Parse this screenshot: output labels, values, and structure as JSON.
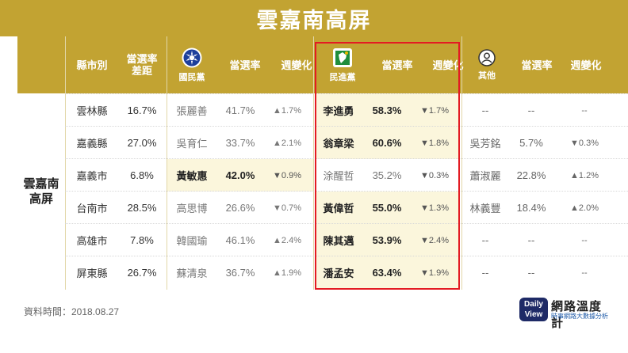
{
  "title": "雲嘉南高屏",
  "headers": {
    "county": "縣市別",
    "gap": "當選率\n差距",
    "kmt_party": "國民黨",
    "kmt_rate": "當選率",
    "kmt_change": "週變化",
    "dpp_party": "民進黨",
    "dpp_rate": "當選率",
    "dpp_change": "週變化",
    "other_party": "其他",
    "other_rate": "當選率",
    "other_change": "週變化"
  },
  "region_label": "雲嘉南\n高屏",
  "rows": [
    {
      "county": "雲林縣",
      "gap": "16.7%",
      "kmt_name": "張麗善",
      "kmt_rate": "41.7%",
      "kmt_change": "▲1.7%",
      "dpp_name": "李進勇",
      "dpp_rate": "58.3%",
      "dpp_change": "▼1.7%",
      "other_name": "--",
      "other_rate": "--",
      "other_change": "--"
    },
    {
      "county": "嘉義縣",
      "gap": "27.0%",
      "kmt_name": "吳育仁",
      "kmt_rate": "33.7%",
      "kmt_change": "▲2.1%",
      "dpp_name": "翁章梁",
      "dpp_rate": "60.6%",
      "dpp_change": "▼1.8%",
      "other_name": "吳芳銘",
      "other_rate": "5.7%",
      "other_change": "▼0.3%"
    },
    {
      "county": "嘉義市",
      "gap": "6.8%",
      "kmt_name": "黃敏惠",
      "kmt_rate": "42.0%",
      "kmt_change": "▼0.9%",
      "dpp_name": "涂醒哲",
      "dpp_rate": "35.2%",
      "dpp_change": "▼0.3%",
      "other_name": "蕭淑麗",
      "other_rate": "22.8%",
      "other_change": "▲1.2%"
    },
    {
      "county": "台南市",
      "gap": "28.5%",
      "kmt_name": "高思博",
      "kmt_rate": "26.6%",
      "kmt_change": "▼0.7%",
      "dpp_name": "黃偉哲",
      "dpp_rate": "55.0%",
      "dpp_change": "▼1.3%",
      "other_name": "林義豐",
      "other_rate": "18.4%",
      "other_change": "▲2.0%"
    },
    {
      "county": "高雄市",
      "gap": "7.8%",
      "kmt_name": "韓國瑜",
      "kmt_rate": "46.1%",
      "kmt_change": "▲2.4%",
      "dpp_name": "陳其邁",
      "dpp_rate": "53.9%",
      "dpp_change": "▼2.4%",
      "other_name": "--",
      "other_rate": "--",
      "other_change": "--"
    },
    {
      "county": "屏東縣",
      "gap": "26.7%",
      "kmt_name": "蘇清泉",
      "kmt_rate": "36.7%",
      "kmt_change": "▲1.9%",
      "dpp_name": "潘孟安",
      "dpp_rate": "63.4%",
      "dpp_change": "▼1.9%",
      "other_name": "--",
      "other_rate": "--",
      "other_change": "--"
    }
  ],
  "footer": "資料時間：2018.08.27",
  "logo": {
    "badge_line1": "Daily",
    "badge_line2": "View",
    "name": "網路溫度計",
    "sub": "時事網路大數據分析"
  },
  "colors": {
    "header_gold": "#c2a332",
    "highlight": "#fbf6dc",
    "red_box": "#e31b23",
    "logo_navy": "#1e2a66"
  }
}
